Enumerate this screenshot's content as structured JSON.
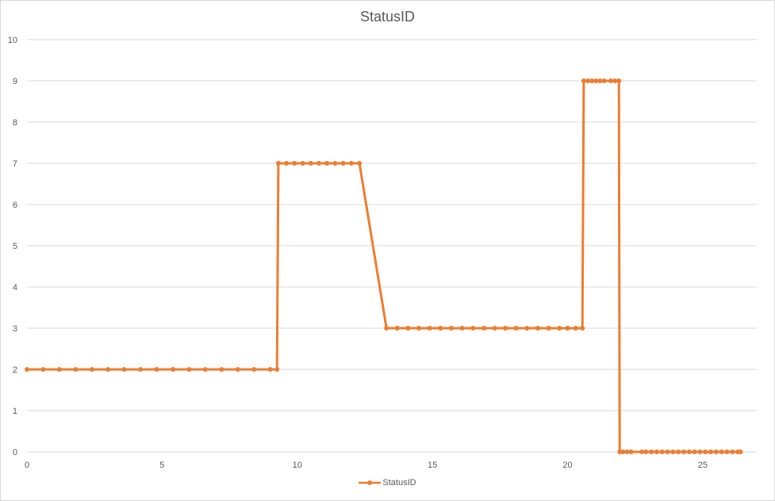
{
  "chart_data": {
    "type": "line",
    "title": "StatusID",
    "xlabel": "",
    "ylabel": "",
    "xlim": [
      0,
      27
    ],
    "ylim": [
      0,
      10
    ],
    "x_ticks": [
      0,
      5,
      10,
      15,
      20,
      25
    ],
    "y_ticks": [
      0,
      1,
      2,
      3,
      4,
      5,
      6,
      7,
      8,
      9,
      10
    ],
    "grid": "horizontal",
    "legend_position": "bottom",
    "series": [
      {
        "name": "StatusID",
        "color": "#ED7D31",
        "marker": "circle",
        "points": [
          [
            0,
            2
          ],
          [
            0.6,
            2
          ],
          [
            1.2,
            2
          ],
          [
            1.8,
            2
          ],
          [
            2.4,
            2
          ],
          [
            3.0,
            2
          ],
          [
            3.6,
            2
          ],
          [
            4.2,
            2
          ],
          [
            4.8,
            2
          ],
          [
            5.4,
            2
          ],
          [
            6.0,
            2
          ],
          [
            6.6,
            2
          ],
          [
            7.2,
            2
          ],
          [
            7.8,
            2
          ],
          [
            8.4,
            2
          ],
          [
            9.0,
            2
          ],
          [
            9.25,
            2
          ],
          [
            9.3,
            7
          ],
          [
            9.6,
            7
          ],
          [
            9.9,
            7
          ],
          [
            10.2,
            7
          ],
          [
            10.5,
            7
          ],
          [
            10.8,
            7
          ],
          [
            11.1,
            7
          ],
          [
            11.4,
            7
          ],
          [
            11.7,
            7
          ],
          [
            12.0,
            7
          ],
          [
            12.3,
            7
          ],
          [
            13.3,
            3
          ],
          [
            13.7,
            3
          ],
          [
            14.1,
            3
          ],
          [
            14.5,
            3
          ],
          [
            14.9,
            3
          ],
          [
            15.3,
            3
          ],
          [
            15.7,
            3
          ],
          [
            16.1,
            3
          ],
          [
            16.5,
            3
          ],
          [
            16.9,
            3
          ],
          [
            17.3,
            3
          ],
          [
            17.7,
            3
          ],
          [
            18.1,
            3
          ],
          [
            18.5,
            3
          ],
          [
            18.9,
            3
          ],
          [
            19.3,
            3
          ],
          [
            19.7,
            3
          ],
          [
            20.0,
            3
          ],
          [
            20.3,
            3
          ],
          [
            20.55,
            3
          ],
          [
            20.6,
            9
          ],
          [
            20.75,
            9
          ],
          [
            20.9,
            9
          ],
          [
            21.05,
            9
          ],
          [
            21.2,
            9
          ],
          [
            21.35,
            9
          ],
          [
            21.6,
            9
          ],
          [
            21.75,
            9
          ],
          [
            21.9,
            9
          ],
          [
            21.93,
            0
          ],
          [
            22.05,
            0
          ],
          [
            22.2,
            0
          ],
          [
            22.35,
            0
          ],
          [
            22.75,
            0
          ],
          [
            22.9,
            0
          ],
          [
            23.1,
            0
          ],
          [
            23.3,
            0
          ],
          [
            23.5,
            0
          ],
          [
            23.7,
            0
          ],
          [
            23.9,
            0
          ],
          [
            24.1,
            0
          ],
          [
            24.3,
            0
          ],
          [
            24.5,
            0
          ],
          [
            24.7,
            0
          ],
          [
            24.9,
            0
          ],
          [
            25.1,
            0
          ],
          [
            25.3,
            0
          ],
          [
            25.5,
            0
          ],
          [
            25.7,
            0
          ],
          [
            25.9,
            0
          ],
          [
            26.1,
            0
          ],
          [
            26.3,
            0
          ],
          [
            26.4,
            0
          ]
        ]
      }
    ]
  }
}
